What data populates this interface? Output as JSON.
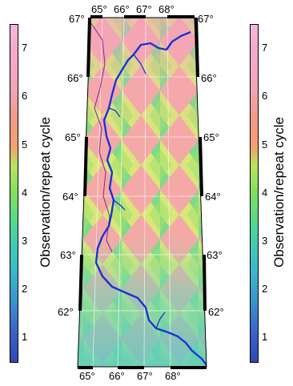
{
  "colorbar": {
    "label": "Observation/repeat cycle",
    "ticks": [
      "7",
      "6",
      "5",
      "4",
      "3",
      "2",
      "1"
    ],
    "range": [
      0.5,
      7.5
    ],
    "colors": [
      "#3446b7",
      "#3a93cf",
      "#3db8c9",
      "#59d88a",
      "#b9e35f",
      "#f29a88",
      "#f7a8cf"
    ]
  },
  "map": {
    "lon_labels_top": [
      "65°",
      "66°",
      "67°",
      "68°",
      "67°"
    ],
    "lon_labels_bottom": [
      "65°",
      "66°",
      "67°",
      "68°"
    ],
    "lat_labels_left": [
      "67°",
      "66°",
      "65°",
      "64°",
      "63°",
      "62°"
    ],
    "lat_labels_right": [
      "66°",
      "65°",
      "64°",
      "63°",
      "62°"
    ],
    "colors": {
      "river": "#1a33d6",
      "border": "#7a2a8a",
      "frame": "#000000"
    }
  }
}
